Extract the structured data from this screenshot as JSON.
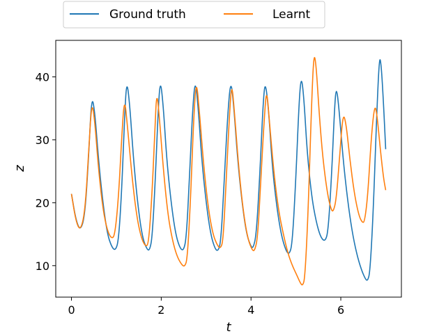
{
  "chart_data": {
    "type": "line",
    "xlabel": "t",
    "ylabel": "z",
    "xlim": [
      -0.35,
      7.35
    ],
    "ylim": [
      5.0,
      45.8
    ],
    "xticks": [
      0,
      2,
      4,
      6
    ],
    "yticks": [
      10,
      20,
      30,
      40
    ],
    "grid": false,
    "legend_position": "top-center",
    "series": [
      {
        "name": "Ground truth",
        "color": "#1f77b4",
        "points": [
          [
            0.0,
            21.4
          ],
          [
            0.1,
            17.2
          ],
          [
            0.2,
            15.5
          ],
          [
            0.3,
            18.0
          ],
          [
            0.38,
            27.0
          ],
          [
            0.45,
            37.1
          ],
          [
            0.52,
            34.5
          ],
          [
            0.6,
            27.0
          ],
          [
            0.7,
            20.0
          ],
          [
            0.8,
            15.0
          ],
          [
            0.9,
            12.9
          ],
          [
            0.98,
            12.4
          ],
          [
            1.05,
            14.0
          ],
          [
            1.12,
            22.0
          ],
          [
            1.18,
            33.0
          ],
          [
            1.23,
            39.7
          ],
          [
            1.3,
            35.5
          ],
          [
            1.38,
            27.0
          ],
          [
            1.48,
            19.5
          ],
          [
            1.58,
            14.5
          ],
          [
            1.68,
            12.6
          ],
          [
            1.74,
            12.4
          ],
          [
            1.8,
            14.5
          ],
          [
            1.87,
            24.0
          ],
          [
            1.93,
            34.5
          ],
          [
            1.98,
            39.8
          ],
          [
            2.05,
            35.0
          ],
          [
            2.12,
            27.0
          ],
          [
            2.22,
            20.0
          ],
          [
            2.32,
            15.0
          ],
          [
            2.42,
            12.7
          ],
          [
            2.5,
            12.4
          ],
          [
            2.56,
            14.5
          ],
          [
            2.63,
            24.0
          ],
          [
            2.7,
            35.0
          ],
          [
            2.76,
            39.8
          ],
          [
            2.83,
            34.5
          ],
          [
            2.9,
            27.0
          ],
          [
            3.0,
            20.0
          ],
          [
            3.1,
            15.0
          ],
          [
            3.2,
            12.6
          ],
          [
            3.27,
            12.3
          ],
          [
            3.33,
            14.0
          ],
          [
            3.4,
            23.0
          ],
          [
            3.48,
            34.0
          ],
          [
            3.55,
            39.8
          ],
          [
            3.62,
            35.0
          ],
          [
            3.7,
            27.0
          ],
          [
            3.8,
            20.0
          ],
          [
            3.9,
            15.0
          ],
          [
            4.0,
            13.0
          ],
          [
            4.05,
            12.8
          ],
          [
            4.12,
            15.0
          ],
          [
            4.2,
            25.0
          ],
          [
            4.27,
            36.0
          ],
          [
            4.32,
            39.5
          ],
          [
            4.4,
            34.0
          ],
          [
            4.47,
            26.0
          ],
          [
            4.57,
            19.5
          ],
          [
            4.67,
            15.0
          ],
          [
            4.77,
            12.5
          ],
          [
            4.85,
            11.7
          ],
          [
            4.92,
            13.5
          ],
          [
            5.0,
            24.0
          ],
          [
            5.07,
            36.0
          ],
          [
            5.12,
            40.3
          ],
          [
            5.18,
            36.5
          ],
          [
            5.25,
            28.0
          ],
          [
            5.35,
            21.0
          ],
          [
            5.45,
            17.0
          ],
          [
            5.55,
            14.5
          ],
          [
            5.65,
            13.8
          ],
          [
            5.72,
            15.5
          ],
          [
            5.8,
            25.0
          ],
          [
            5.86,
            35.0
          ],
          [
            5.9,
            38.6
          ],
          [
            5.96,
            35.0
          ],
          [
            6.05,
            27.0
          ],
          [
            6.15,
            20.5
          ],
          [
            6.25,
            15.5
          ],
          [
            6.35,
            12.0
          ],
          [
            6.45,
            9.5
          ],
          [
            6.55,
            7.8
          ],
          [
            6.6,
            7.6
          ],
          [
            6.65,
            9.0
          ],
          [
            6.72,
            18.0
          ],
          [
            6.8,
            34.0
          ],
          [
            6.86,
            43.3
          ],
          [
            6.9,
            42.0
          ],
          [
            6.95,
            36.0
          ],
          [
            7.0,
            28.5
          ]
        ]
      },
      {
        "name": "Learnt",
        "color": "#ff7f0e",
        "points": [
          [
            0.0,
            21.4
          ],
          [
            0.1,
            17.0
          ],
          [
            0.2,
            15.5
          ],
          [
            0.3,
            18.5
          ],
          [
            0.38,
            27.5
          ],
          [
            0.45,
            36.3
          ],
          [
            0.52,
            33.0
          ],
          [
            0.6,
            25.5
          ],
          [
            0.7,
            19.0
          ],
          [
            0.8,
            15.5
          ],
          [
            0.9,
            14.2
          ],
          [
            0.97,
            15.0
          ],
          [
            1.05,
            21.0
          ],
          [
            1.12,
            30.5
          ],
          [
            1.18,
            36.9
          ],
          [
            1.25,
            32.0
          ],
          [
            1.35,
            24.0
          ],
          [
            1.45,
            18.0
          ],
          [
            1.55,
            14.5
          ],
          [
            1.65,
            13.0
          ],
          [
            1.72,
            13.5
          ],
          [
            1.8,
            22.0
          ],
          [
            1.86,
            32.0
          ],
          [
            1.9,
            37.8
          ],
          [
            1.96,
            33.5
          ],
          [
            2.05,
            25.0
          ],
          [
            2.15,
            18.0
          ],
          [
            2.25,
            14.0
          ],
          [
            2.35,
            11.5
          ],
          [
            2.45,
            10.2
          ],
          [
            2.52,
            9.8
          ],
          [
            2.58,
            11.0
          ],
          [
            2.65,
            20.0
          ],
          [
            2.72,
            33.0
          ],
          [
            2.78,
            39.8
          ],
          [
            2.85,
            34.5
          ],
          [
            2.95,
            25.5
          ],
          [
            3.05,
            19.0
          ],
          [
            3.15,
            15.0
          ],
          [
            3.25,
            13.2
          ],
          [
            3.32,
            12.7
          ],
          [
            3.38,
            14.0
          ],
          [
            3.45,
            24.0
          ],
          [
            3.52,
            34.0
          ],
          [
            3.57,
            39.2
          ],
          [
            3.63,
            34.5
          ],
          [
            3.72,
            26.0
          ],
          [
            3.82,
            19.0
          ],
          [
            3.92,
            14.5
          ],
          [
            4.02,
            12.5
          ],
          [
            4.08,
            12.3
          ],
          [
            4.15,
            14.5
          ],
          [
            4.22,
            24.0
          ],
          [
            4.3,
            34.0
          ],
          [
            4.35,
            38.3
          ],
          [
            4.42,
            32.0
          ],
          [
            4.52,
            24.0
          ],
          [
            4.62,
            18.5
          ],
          [
            4.72,
            15.0
          ],
          [
            4.82,
            12.0
          ],
          [
            4.92,
            10.0
          ],
          [
            5.02,
            8.5
          ],
          [
            5.1,
            7.2
          ],
          [
            5.15,
            6.8
          ],
          [
            5.2,
            8.0
          ],
          [
            5.27,
            18.0
          ],
          [
            5.35,
            36.0
          ],
          [
            5.4,
            43.8
          ],
          [
            5.45,
            42.0
          ],
          [
            5.52,
            34.0
          ],
          [
            5.6,
            27.0
          ],
          [
            5.7,
            21.5
          ],
          [
            5.78,
            19.0
          ],
          [
            5.83,
            18.5
          ],
          [
            5.9,
            20.5
          ],
          [
            5.98,
            28.0
          ],
          [
            6.05,
            34.3
          ],
          [
            6.12,
            32.5
          ],
          [
            6.2,
            27.0
          ],
          [
            6.3,
            21.5
          ],
          [
            6.4,
            18.0
          ],
          [
            6.48,
            16.8
          ],
          [
            6.53,
            17.0
          ],
          [
            6.6,
            21.0
          ],
          [
            6.68,
            30.5
          ],
          [
            6.75,
            35.4
          ],
          [
            6.8,
            34.5
          ],
          [
            6.88,
            28.5
          ],
          [
            6.95,
            24.0
          ],
          [
            7.0,
            22.0
          ]
        ]
      }
    ]
  }
}
